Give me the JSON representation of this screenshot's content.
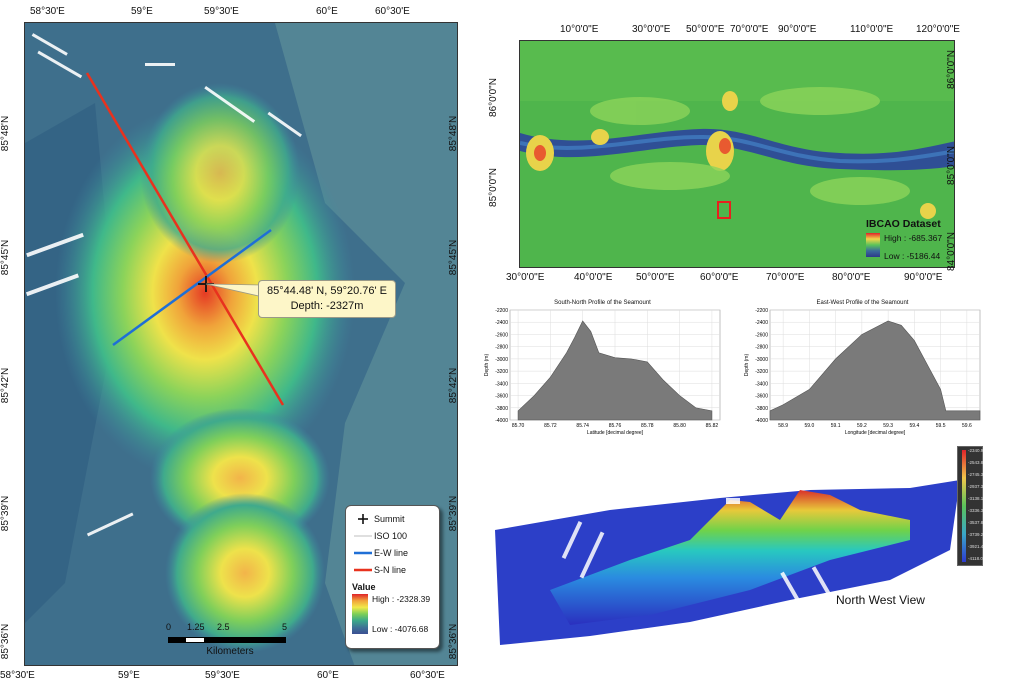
{
  "main_map": {
    "top_ticks": [
      "58°30'E",
      "59°E",
      "59°30'E",
      "60°E",
      "60°30'E"
    ],
    "bottom_ticks": [
      "58°30'E",
      "59°E",
      "59°30'E",
      "60°E",
      "60°30'E"
    ],
    "left_ticks": [
      "85°48'N",
      "85°45'N",
      "85°42'N",
      "85°39'N",
      "85°36'N"
    ],
    "right_ticks": [
      "85°48'N",
      "85°45'N",
      "85°42'N",
      "85°39'N",
      "85°36'N"
    ],
    "callout": {
      "line1": "85°44.48' N, 59°20.76' E",
      "line2": "Depth: -2327m"
    },
    "legend": {
      "summit": "Summit",
      "iso": "ISO 100",
      "ew": "E-W line",
      "sn": "S-N line",
      "value_title": "Value",
      "high": "High : -2328.39",
      "low": "Low : -4076.68"
    },
    "scalebar": {
      "labels": [
        "0",
        "1.25",
        "2.5",
        "5"
      ],
      "unit": "Kilometers"
    },
    "colors": {
      "ew_line": "#1f6fd6",
      "sn_line": "#e8321e"
    }
  },
  "overview": {
    "top_ticks": [
      "10°0'0\"E",
      "30°0'0\"E",
      "50°0'0\"E",
      "70°0'0\"E",
      "90°0'0\"E",
      "110°0'0\"E",
      "120°0'0\"E"
    ],
    "bottom_ticks": [
      "30°0'0\"E",
      "40°0'0\"E",
      "50°0'0\"E",
      "60°0'0\"E",
      "70°0'0\"E",
      "80°0'0\"E",
      "90°0'0\"E"
    ],
    "left_ticks": [
      "86°0'0\"N",
      "85°0'0\"N"
    ],
    "right_ticks": [
      "86°0'0\"N",
      "85°0'0\"N",
      "84°0'0\"N"
    ],
    "legend": {
      "title": "IBCAO Dataset",
      "high": "High : -685.367",
      "low": "Low : -5186.44"
    }
  },
  "profiles": [
    {
      "title": "South-North Profile of the Seamount",
      "xlabel": "Latitude [decimal degree]",
      "ylabel": "Depth (m)",
      "x_ticks": [
        "85.70",
        "85.72",
        "85.74",
        "85.76",
        "85.78",
        "85.80",
        "85.82"
      ],
      "y_ticks": [
        "-2200",
        "-2400",
        "-2600",
        "-2800",
        "-3000",
        "-3200",
        "-3400",
        "-3600",
        "-3800",
        "-4000"
      ],
      "chart_data": {
        "type": "area",
        "x": [
          85.7,
          85.71,
          85.72,
          85.73,
          85.735,
          85.74,
          85.745,
          85.75,
          85.76,
          85.77,
          85.78,
          85.79,
          85.8,
          85.81,
          85.82
        ],
        "y": [
          -3850,
          -3600,
          -3300,
          -2900,
          -2650,
          -2380,
          -2550,
          -2900,
          -2980,
          -3000,
          -3050,
          -3350,
          -3600,
          -3800,
          -3850
        ],
        "xlim": [
          85.695,
          85.825
        ],
        "ylim": [
          -4000,
          -2200
        ]
      }
    },
    {
      "title": "East-West Profile of the Seamount",
      "xlabel": "Longitude [decimal degree]",
      "ylabel": "Depth (m)",
      "x_ticks": [
        "58.9",
        "59.0",
        "59.1",
        "59.2",
        "59.3",
        "59.4",
        "59.5",
        "59.6"
      ],
      "y_ticks": [
        "-2200",
        "-2400",
        "-2600",
        "-2800",
        "-3000",
        "-3200",
        "-3400",
        "-3600",
        "-3800",
        "-4000"
      ],
      "chart_data": {
        "type": "area",
        "x": [
          58.85,
          58.9,
          59.0,
          59.1,
          59.2,
          59.3,
          59.35,
          59.4,
          59.45,
          59.5,
          59.52,
          59.6,
          59.65
        ],
        "y": [
          -3850,
          -3750,
          -3500,
          -3000,
          -2600,
          -2380,
          -2450,
          -2700,
          -3100,
          -3500,
          -3850,
          -3850,
          -3850
        ],
        "xlim": [
          58.85,
          59.65
        ],
        "ylim": [
          -4000,
          -2200
        ]
      }
    }
  ],
  "view3d": {
    "label": "North West View",
    "bar_labels": [
      "-2340.9",
      "-2543.8",
      "-2745.3",
      "-2937.3",
      "-3138.1",
      "-3336.3",
      "-3537.8",
      "-3739.2",
      "-3921.4",
      "-4118.0"
    ]
  }
}
